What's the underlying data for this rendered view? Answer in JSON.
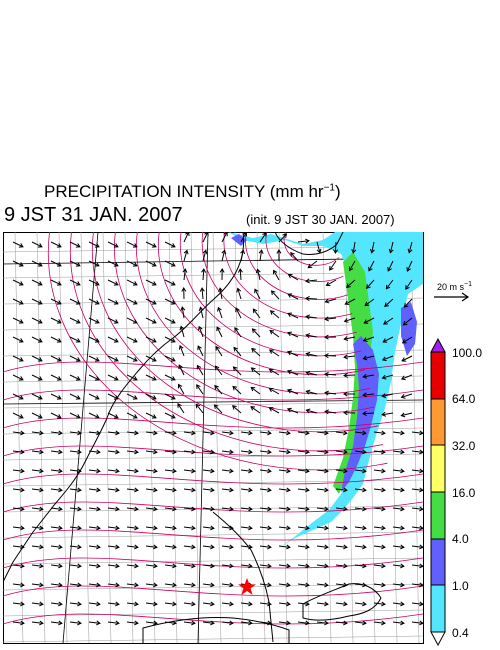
{
  "header": {
    "title": "PRECIPITATION INTENSITY (mm hr",
    "title_exp": "−1",
    "title_close": ")",
    "valid_time": "9 JST 31 JAN. 2007",
    "init_time": "(init. 9 JST 30 JAN. 2007)"
  },
  "reference_vector": {
    "label": "20 m s",
    "label_exp": "−1",
    "speed_ms": 20
  },
  "colorbar": {
    "levels": [
      "100.0",
      "64.0",
      "32.0",
      "16.0",
      "4.0",
      "1.0",
      "0.4"
    ],
    "colors": [
      "#a020f0",
      "#e60000",
      "#ff9933",
      "#ffff66",
      "#44dd44",
      "#6060ff",
      "#55e6ff",
      "#ffffff"
    ]
  },
  "map": {
    "marker": "red-star",
    "colors": {
      "coast": "#000000",
      "isobar": "#cc0066",
      "grid": "#999999",
      "wind": "#000000"
    }
  }
}
